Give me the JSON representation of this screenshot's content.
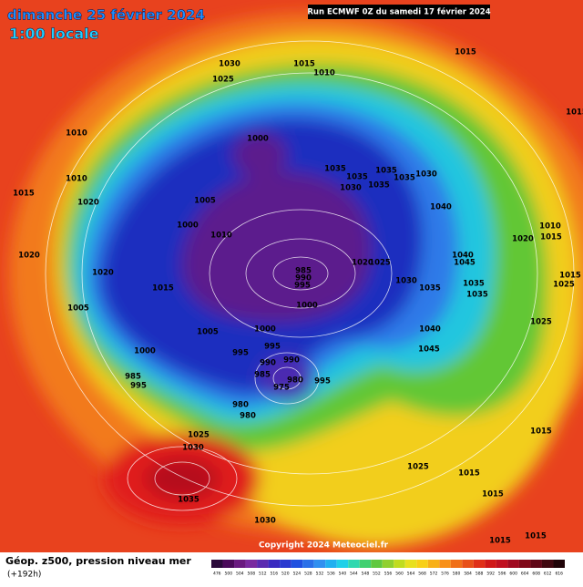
{
  "header": {
    "date": "dimanche 25 février 2024",
    "time": "1:00 locale",
    "run": "Run ECMWF 0Z du samedi 17 février 2024"
  },
  "copyright": "Copyright 2024 Meteociel.fr",
  "footer": {
    "title": "Géop. z500, pression niveau mer",
    "lead": "(+192h)"
  },
  "scale_labels": [
    "476",
    "500",
    "504",
    "508",
    "512",
    "516",
    "520",
    "524",
    "528",
    "532",
    "536",
    "540",
    "544",
    "548",
    "552",
    "556",
    "560",
    "564",
    "568",
    "572",
    "576",
    "580",
    "584",
    "588",
    "592",
    "596",
    "600",
    "604",
    "608",
    "612",
    "616"
  ],
  "isobar_labels": [
    "1030",
    "1015",
    "1010",
    "1025",
    "1015",
    "1010",
    "1000",
    "1035",
    "1035",
    "1035",
    "1030",
    "1035",
    "1035",
    "1030",
    "1015",
    "1010",
    "1020",
    "1005",
    "1040",
    "1000",
    "1010",
    "1010",
    "1020",
    "1015",
    "1020",
    "985",
    "990",
    "995",
    "1020",
    "1025",
    "1040",
    "1045",
    "1015",
    "1025",
    "1020",
    "1015",
    "1030",
    "1035",
    "1035",
    "1035",
    "1005",
    "1000",
    "1025",
    "1005",
    "1000",
    "1040",
    "995",
    "995",
    "1045",
    "1000",
    "990",
    "980",
    "975",
    "990",
    "985",
    "995",
    "985",
    "995",
    "980",
    "980",
    "1015",
    "1025",
    "1030",
    "1025",
    "1015",
    "1035",
    "1030",
    "1015",
    "1015",
    "1015",
    "1015"
  ]
}
